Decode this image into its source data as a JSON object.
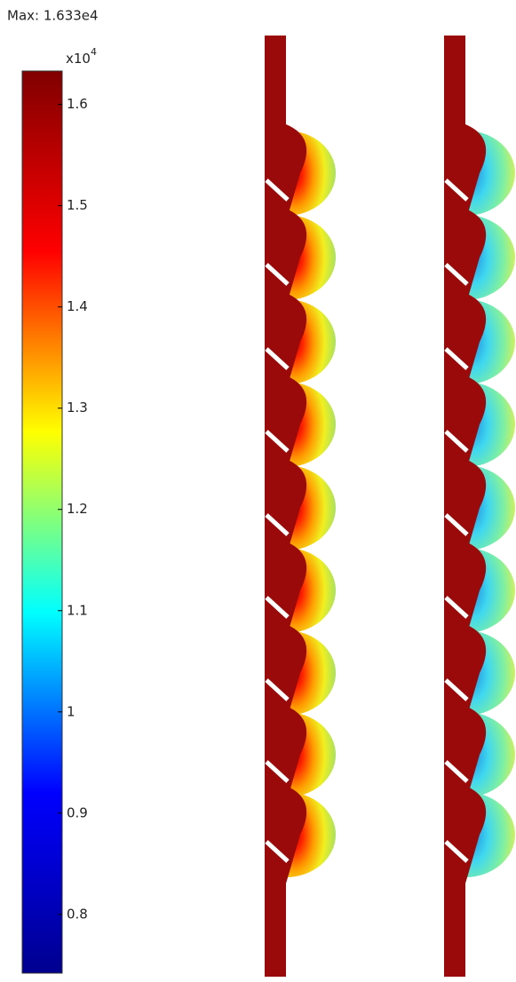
{
  "chart_data": {
    "type": "colorbar",
    "title": "Max: 1.633e4",
    "multiplier": {
      "base": "x10",
      "exponent": "4"
    },
    "ylim": [
      0.742,
      1.633
    ],
    "yticks": [
      0.8,
      0.9,
      1,
      1.1,
      1.2,
      1.3,
      1.4,
      1.5,
      1.6
    ],
    "colormap": [
      "#00008f",
      "#0000ff",
      "#00ffff",
      "#ffff00",
      "#ff0000",
      "#800000"
    ]
  }
}
